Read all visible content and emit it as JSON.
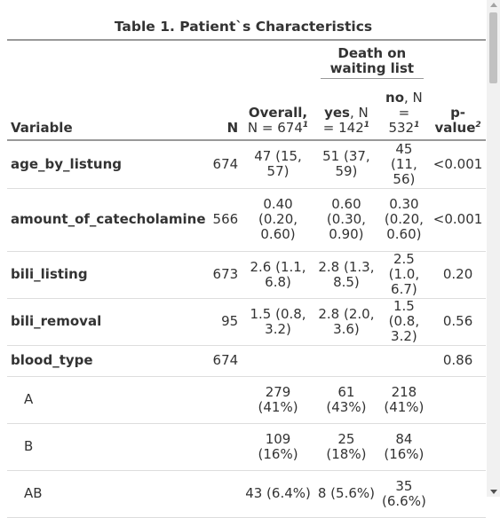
{
  "table": {
    "title": "Table 1. Patient`s Characteristics",
    "spanner": "Death on waiting list",
    "headers": {
      "variable": "Variable",
      "n": "N",
      "overall_bold": "Overall,",
      "overall_n": "N = 674",
      "yes_bold": "yes",
      "yes_n": ", N = 142",
      "no_bold": "no",
      "no_n": ", N = 532",
      "pvalue": "p-value",
      "fn1": "1",
      "fn2": "2"
    },
    "rows": [
      {
        "variable": "age_by_listung",
        "n": "674",
        "overall": "47 (15, 57)",
        "yes": "51 (37, 59)",
        "no": "45 (11, 56)",
        "p": "<0.001"
      },
      {
        "variable": "amount_of_catecholamine",
        "n": "566",
        "overall": "0.40 (0.20, 0.60)",
        "yes": "0.60 (0.30, 0.90)",
        "no": "0.30 (0.20, 0.60)",
        "p": "<0.001"
      },
      {
        "variable": "bili_listing",
        "n": "673",
        "overall": "2.6 (1.1, 6.8)",
        "yes": "2.8 (1.3, 8.5)",
        "no": "2.5 (1.0, 6.7)",
        "p": "0.20"
      },
      {
        "variable": "bili_removal",
        "n": "95",
        "overall": "1.5 (0.8, 3.2)",
        "yes": "2.8 (2.0, 3.6)",
        "no": "1.5 (0.8, 3.2)",
        "p": "0.56"
      },
      {
        "variable": "blood_type",
        "n": "674",
        "overall": "",
        "yes": "",
        "no": "",
        "p": "0.86"
      }
    ],
    "levels": [
      {
        "label": "A",
        "overall": "279 (41%)",
        "yes": "61 (43%)",
        "no": "218 (41%)"
      },
      {
        "label": "B",
        "overall": "109 (16%)",
        "yes": "25 (18%)",
        "no": "84 (16%)"
      },
      {
        "label": "AB",
        "overall": "43 (6.4%)",
        "yes": "8 (5.6%)",
        "no": "35 (6.6%)"
      }
    ]
  }
}
